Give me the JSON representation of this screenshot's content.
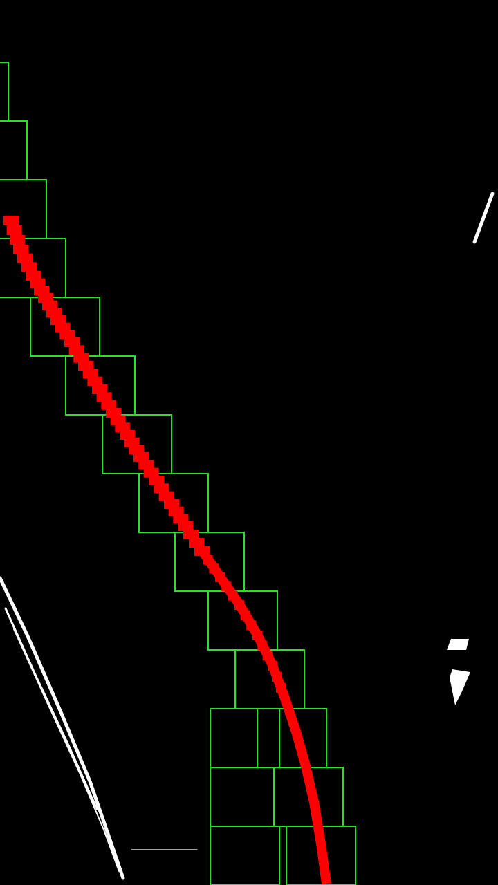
{
  "view": {
    "background": "#000000"
  },
  "colors": {
    "window": "#22e622",
    "fit": "#ff0000",
    "pixels": "#ffffff"
  },
  "elements": {
    "search_windows": {
      "kind": "sliding-window-boxes"
    },
    "lane_fit": {
      "kind": "fitted-lane-line"
    },
    "lane_pixels": {
      "kind": "detected-lane-pixels"
    }
  }
}
